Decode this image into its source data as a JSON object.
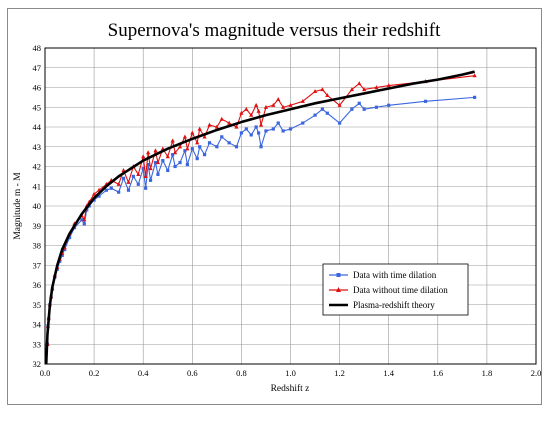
{
  "chart_data": {
    "type": "line",
    "title": "Supernova's magnitude versus their redshift",
    "xlabel": "Redshift z",
    "ylabel": "Magnitude m - M",
    "xlim": [
      0,
      2.0
    ],
    "ylim": [
      32,
      48
    ],
    "x_ticks": [
      "0.0",
      "0.2",
      "0.4",
      "0.6",
      "0.8",
      "1.0",
      "1.2",
      "1.4",
      "1.6",
      "1.8",
      "2.0"
    ],
    "y_ticks": [
      "32",
      "33",
      "34",
      "35",
      "36",
      "37",
      "38",
      "39",
      "40",
      "41",
      "42",
      "43",
      "44",
      "45",
      "46",
      "47",
      "48"
    ],
    "x_tick_values": [
      0,
      0.2,
      0.4,
      0.6,
      0.8,
      1.0,
      1.2,
      1.4,
      1.6,
      1.8,
      2.0
    ],
    "y_tick_values": [
      32,
      33,
      34,
      35,
      36,
      37,
      38,
      39,
      40,
      41,
      42,
      43,
      44,
      45,
      46,
      47,
      48
    ],
    "grid": true,
    "legend_position": "bottom-right",
    "series": [
      {
        "name": "Data with time dilation",
        "color": "#3a66e0",
        "marker": "square",
        "points": [
          [
            0.01,
            33.0
          ],
          [
            0.012,
            33.9
          ],
          [
            0.015,
            34.3
          ],
          [
            0.02,
            35.0
          ],
          [
            0.025,
            35.4
          ],
          [
            0.03,
            35.8
          ],
          [
            0.04,
            36.4
          ],
          [
            0.05,
            36.8
          ],
          [
            0.06,
            37.2
          ],
          [
            0.07,
            37.5
          ],
          [
            0.08,
            37.8
          ],
          [
            0.1,
            38.4
          ],
          [
            0.12,
            38.9
          ],
          [
            0.15,
            39.3
          ],
          [
            0.16,
            39.1
          ],
          [
            0.17,
            39.8
          ],
          [
            0.18,
            40.0
          ],
          [
            0.2,
            40.3
          ],
          [
            0.22,
            40.5
          ],
          [
            0.25,
            40.8
          ],
          [
            0.27,
            40.9
          ],
          [
            0.3,
            40.7
          ],
          [
            0.32,
            41.4
          ],
          [
            0.34,
            40.8
          ],
          [
            0.36,
            41.5
          ],
          [
            0.38,
            41.1
          ],
          [
            0.4,
            41.9
          ],
          [
            0.41,
            40.9
          ],
          [
            0.42,
            42.1
          ],
          [
            0.43,
            41.3
          ],
          [
            0.45,
            42.2
          ],
          [
            0.46,
            41.6
          ],
          [
            0.48,
            42.3
          ],
          [
            0.5,
            41.8
          ],
          [
            0.52,
            42.6
          ],
          [
            0.53,
            42.0
          ],
          [
            0.55,
            42.2
          ],
          [
            0.57,
            42.8
          ],
          [
            0.58,
            42.1
          ],
          [
            0.6,
            42.9
          ],
          [
            0.62,
            42.4
          ],
          [
            0.63,
            43.0
          ],
          [
            0.65,
            42.6
          ],
          [
            0.67,
            43.2
          ],
          [
            0.7,
            43.0
          ],
          [
            0.72,
            43.5
          ],
          [
            0.75,
            43.2
          ],
          [
            0.78,
            43.0
          ],
          [
            0.8,
            43.7
          ],
          [
            0.82,
            43.9
          ],
          [
            0.84,
            43.6
          ],
          [
            0.86,
            44.0
          ],
          [
            0.87,
            43.7
          ],
          [
            0.88,
            43.0
          ],
          [
            0.9,
            43.8
          ],
          [
            0.93,
            43.9
          ],
          [
            0.95,
            44.2
          ],
          [
            0.97,
            43.8
          ],
          [
            1.0,
            43.9
          ],
          [
            1.05,
            44.2
          ],
          [
            1.1,
            44.6
          ],
          [
            1.13,
            44.9
          ],
          [
            1.15,
            44.7
          ],
          [
            1.2,
            44.2
          ],
          [
            1.25,
            44.9
          ],
          [
            1.28,
            45.2
          ],
          [
            1.3,
            44.9
          ],
          [
            1.35,
            45.0
          ],
          [
            1.4,
            45.1
          ],
          [
            1.55,
            45.3
          ],
          [
            1.75,
            45.5
          ]
        ]
      },
      {
        "name": "Data without time dilation",
        "color": "#e01010",
        "marker": "triangle",
        "points": [
          [
            0.01,
            33.0
          ],
          [
            0.012,
            33.9
          ],
          [
            0.015,
            34.3
          ],
          [
            0.02,
            35.0
          ],
          [
            0.025,
            35.4
          ],
          [
            0.03,
            35.8
          ],
          [
            0.04,
            36.5
          ],
          [
            0.05,
            36.9
          ],
          [
            0.06,
            37.3
          ],
          [
            0.07,
            37.6
          ],
          [
            0.08,
            37.9
          ],
          [
            0.1,
            38.6
          ],
          [
            0.12,
            39.1
          ],
          [
            0.15,
            39.5
          ],
          [
            0.16,
            39.3
          ],
          [
            0.17,
            40.0
          ],
          [
            0.18,
            40.2
          ],
          [
            0.2,
            40.6
          ],
          [
            0.22,
            40.8
          ],
          [
            0.25,
            41.1
          ],
          [
            0.27,
            41.3
          ],
          [
            0.3,
            41.1
          ],
          [
            0.32,
            41.8
          ],
          [
            0.34,
            41.2
          ],
          [
            0.36,
            42.0
          ],
          [
            0.38,
            41.6
          ],
          [
            0.4,
            42.5
          ],
          [
            0.41,
            41.5
          ],
          [
            0.42,
            42.7
          ],
          [
            0.43,
            41.9
          ],
          [
            0.45,
            42.8
          ],
          [
            0.46,
            42.2
          ],
          [
            0.48,
            42.9
          ],
          [
            0.5,
            42.5
          ],
          [
            0.52,
            43.3
          ],
          [
            0.53,
            42.7
          ],
          [
            0.55,
            43.0
          ],
          [
            0.57,
            43.5
          ],
          [
            0.58,
            42.9
          ],
          [
            0.6,
            43.7
          ],
          [
            0.62,
            43.2
          ],
          [
            0.63,
            43.9
          ],
          [
            0.65,
            43.5
          ],
          [
            0.67,
            44.1
          ],
          [
            0.7,
            44.0
          ],
          [
            0.72,
            44.4
          ],
          [
            0.75,
            44.2
          ],
          [
            0.78,
            44.0
          ],
          [
            0.8,
            44.7
          ],
          [
            0.82,
            44.9
          ],
          [
            0.84,
            44.6
          ],
          [
            0.86,
            45.1
          ],
          [
            0.87,
            44.8
          ],
          [
            0.88,
            44.1
          ],
          [
            0.9,
            45.0
          ],
          [
            0.93,
            45.1
          ],
          [
            0.95,
            45.4
          ],
          [
            0.97,
            45.0
          ],
          [
            1.0,
            45.1
          ],
          [
            1.05,
            45.3
          ],
          [
            1.1,
            45.8
          ],
          [
            1.13,
            45.9
          ],
          [
            1.15,
            45.6
          ],
          [
            1.2,
            45.1
          ],
          [
            1.25,
            45.9
          ],
          [
            1.28,
            46.2
          ],
          [
            1.3,
            45.9
          ],
          [
            1.35,
            46.0
          ],
          [
            1.4,
            46.1
          ],
          [
            1.55,
            46.3
          ],
          [
            1.75,
            46.6
          ]
        ]
      },
      {
        "name": "Plasma-redshift theory",
        "color": "#000000",
        "marker": "none",
        "points": [
          [
            0.005,
            32.0
          ],
          [
            0.01,
            33.5
          ],
          [
            0.02,
            35.0
          ],
          [
            0.03,
            35.9
          ],
          [
            0.05,
            37.0
          ],
          [
            0.07,
            37.8
          ],
          [
            0.1,
            38.6
          ],
          [
            0.15,
            39.6
          ],
          [
            0.2,
            40.4
          ],
          [
            0.25,
            41.0
          ],
          [
            0.3,
            41.5
          ],
          [
            0.35,
            41.9
          ],
          [
            0.4,
            42.3
          ],
          [
            0.5,
            42.9
          ],
          [
            0.6,
            43.4
          ],
          [
            0.7,
            43.85
          ],
          [
            0.8,
            44.25
          ],
          [
            0.9,
            44.6
          ],
          [
            1.0,
            44.9
          ],
          [
            1.1,
            45.2
          ],
          [
            1.2,
            45.45
          ],
          [
            1.3,
            45.7
          ],
          [
            1.4,
            45.95
          ],
          [
            1.5,
            46.2
          ],
          [
            1.6,
            46.4
          ],
          [
            1.7,
            46.65
          ],
          [
            1.75,
            46.8
          ]
        ]
      }
    ]
  }
}
